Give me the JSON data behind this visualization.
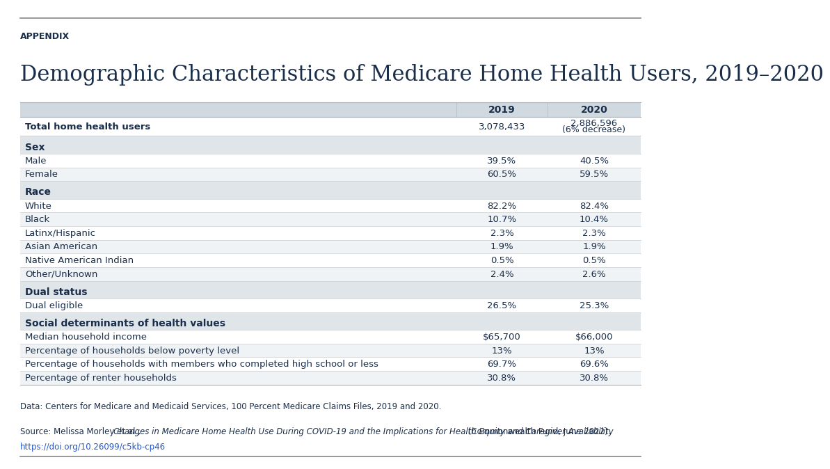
{
  "appendix_label": "APPENDIX",
  "title": "Demographic Characteristics of Medicare Home Health Users, 2019–2020",
  "col_header_2019": "2019",
  "col_header_2020": "2020",
  "rows": [
    {
      "label": "Total home health users",
      "val2019": "3,078,433",
      "val2020": "2,886,596\n(6% decrease)",
      "bold_label": true,
      "section_header": false,
      "is_separator": false,
      "bg": "white"
    },
    {
      "label": "",
      "val2019": "",
      "val2020": "",
      "bold_label": false,
      "section_header": false,
      "is_separator": true,
      "bg": "#e0e5ea"
    },
    {
      "label": "Sex",
      "val2019": "",
      "val2020": "",
      "bold_label": true,
      "section_header": true,
      "is_separator": false,
      "bg": "#e0e5ea"
    },
    {
      "label": "Male",
      "val2019": "39.5%",
      "val2020": "40.5%",
      "bold_label": false,
      "section_header": false,
      "is_separator": false,
      "bg": "white"
    },
    {
      "label": "Female",
      "val2019": "60.5%",
      "val2020": "59.5%",
      "bold_label": false,
      "section_header": false,
      "is_separator": false,
      "bg": "#f0f3f5"
    },
    {
      "label": "",
      "val2019": "",
      "val2020": "",
      "bold_label": false,
      "section_header": false,
      "is_separator": true,
      "bg": "#e0e5ea"
    },
    {
      "label": "Race",
      "val2019": "",
      "val2020": "",
      "bold_label": true,
      "section_header": true,
      "is_separator": false,
      "bg": "#e0e5ea"
    },
    {
      "label": "White",
      "val2019": "82.2%",
      "val2020": "82.4%",
      "bold_label": false,
      "section_header": false,
      "is_separator": false,
      "bg": "white"
    },
    {
      "label": "Black",
      "val2019": "10.7%",
      "val2020": "10.4%",
      "bold_label": false,
      "section_header": false,
      "is_separator": false,
      "bg": "#f0f3f5"
    },
    {
      "label": "Latinx/Hispanic",
      "val2019": "2.3%",
      "val2020": "2.3%",
      "bold_label": false,
      "section_header": false,
      "is_separator": false,
      "bg": "white"
    },
    {
      "label": "Asian American",
      "val2019": "1.9%",
      "val2020": "1.9%",
      "bold_label": false,
      "section_header": false,
      "is_separator": false,
      "bg": "#f0f3f5"
    },
    {
      "label": "Native American Indian",
      "val2019": "0.5%",
      "val2020": "0.5%",
      "bold_label": false,
      "section_header": false,
      "is_separator": false,
      "bg": "white"
    },
    {
      "label": "Other/Unknown",
      "val2019": "2.4%",
      "val2020": "2.6%",
      "bold_label": false,
      "section_header": false,
      "is_separator": false,
      "bg": "#f0f3f5"
    },
    {
      "label": "",
      "val2019": "",
      "val2020": "",
      "bold_label": false,
      "section_header": false,
      "is_separator": true,
      "bg": "#e0e5ea"
    },
    {
      "label": "Dual status",
      "val2019": "",
      "val2020": "",
      "bold_label": true,
      "section_header": true,
      "is_separator": false,
      "bg": "#e0e5ea"
    },
    {
      "label": "Dual eligible",
      "val2019": "26.5%",
      "val2020": "25.3%",
      "bold_label": false,
      "section_header": false,
      "is_separator": false,
      "bg": "white"
    },
    {
      "label": "",
      "val2019": "",
      "val2020": "",
      "bold_label": false,
      "section_header": false,
      "is_separator": true,
      "bg": "#e0e5ea"
    },
    {
      "label": "Social determinants of health values",
      "val2019": "",
      "val2020": "",
      "bold_label": true,
      "section_header": true,
      "is_separator": false,
      "bg": "#e0e5ea"
    },
    {
      "label": "Median household income",
      "val2019": "$65,700",
      "val2020": "$66,000",
      "bold_label": false,
      "section_header": false,
      "is_separator": false,
      "bg": "white"
    },
    {
      "label": "Percentage of households below poverty level",
      "val2019": "13%",
      "val2020": "13%",
      "bold_label": false,
      "section_header": false,
      "is_separator": false,
      "bg": "#f0f3f5"
    },
    {
      "label": "Percentage of households with members who completed high school or less",
      "val2019": "69.7%",
      "val2020": "69.6%",
      "bold_label": false,
      "section_header": false,
      "is_separator": false,
      "bg": "white"
    },
    {
      "label": "Percentage of renter households",
      "val2019": "30.8%",
      "val2020": "30.8%",
      "bold_label": false,
      "section_header": false,
      "is_separator": false,
      "bg": "#f0f3f5"
    }
  ],
  "footer_data": "Data: Centers for Medicare and Medicaid Services, 100 Percent Medicare Claims Files, 2019 and 2020.",
  "footer_source_plain": "Source: Melissa Morley et al., ",
  "footer_source_italic": "Changes in Medicare Home Health Use During COVID-19 and the Implications for Health Equity and Caregiver Availability",
  "footer_source_end": " (Commonwealth Fund, June 2022).",
  "footer_url": "https://doi.org/10.26099/c5kb-cp46",
  "text_color": "#1a2e4a",
  "header_bg": "#d0d8e0",
  "separator_bg": "#e0e5ea",
  "bg_color": "#ffffff",
  "top_line_color": "#888888",
  "border_line_color": "#aab0b8",
  "row_line_color": "#c8cdd2"
}
